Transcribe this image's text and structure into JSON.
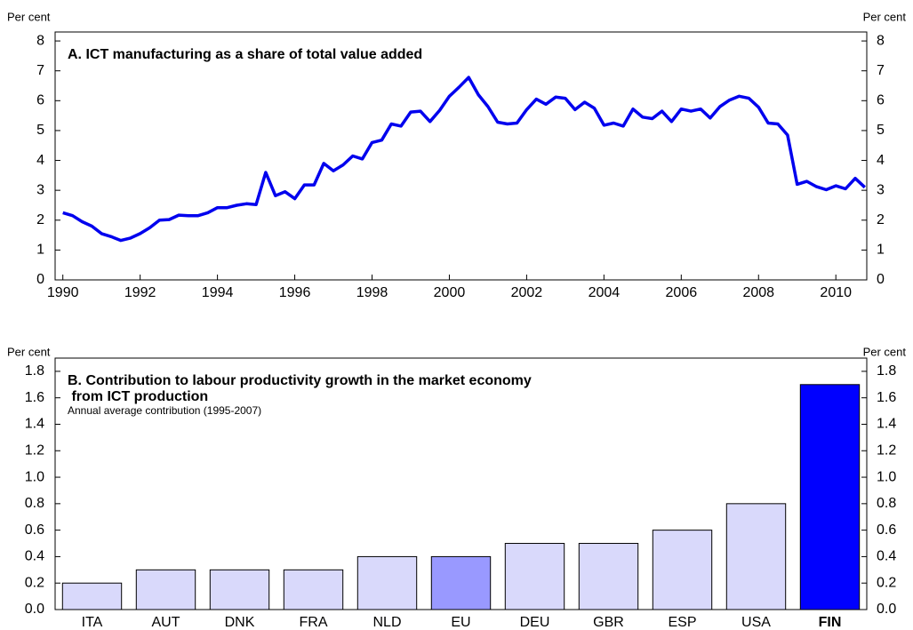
{
  "chart_data": [
    {
      "type": "line",
      "title": [
        "A. ICT manufacturing as a share of total value added"
      ],
      "y_label": "Per cent",
      "y2_label": "Per cent",
      "x": [
        1990,
        1990.25,
        1990.5,
        1990.75,
        1991,
        1991.25,
        1991.5,
        1991.75,
        1992,
        1992.25,
        1992.5,
        1992.75,
        1993,
        1993.25,
        1993.5,
        1993.75,
        1994,
        1994.25,
        1994.5,
        1994.75,
        1995,
        1995.25,
        1995.5,
        1995.75,
        1996,
        1996.25,
        1996.5,
        1996.75,
        1997,
        1997.25,
        1997.5,
        1997.75,
        1998,
        1998.25,
        1998.5,
        1998.75,
        1999,
        1999.25,
        1999.5,
        1999.75,
        2000,
        2000.25,
        2000.5,
        2000.75,
        2001,
        2001.25,
        2001.5,
        2001.75,
        2002,
        2002.25,
        2002.5,
        2002.75,
        2003,
        2003.25,
        2003.5,
        2003.75,
        2004,
        2004.25,
        2004.5,
        2004.75,
        2005,
        2005.25,
        2005.5,
        2005.75,
        2006,
        2006.25,
        2006.5,
        2006.75,
        2007,
        2007.25,
        2007.5,
        2007.75,
        2008,
        2008.25,
        2008.5,
        2008.75,
        2009,
        2009.25,
        2009.5,
        2009.75,
        2010,
        2010.25,
        2010.5,
        2010.75
      ],
      "series": [
        {
          "color": "#0000ee",
          "values": [
            2.25,
            2.15,
            1.95,
            1.8,
            1.55,
            1.45,
            1.32,
            1.4,
            1.55,
            1.75,
            2.0,
            2.02,
            2.17,
            2.15,
            2.15,
            2.25,
            2.42,
            2.42,
            2.5,
            2.55,
            2.52,
            3.6,
            2.82,
            2.95,
            2.72,
            3.18,
            3.18,
            3.9,
            3.65,
            3.85,
            4.15,
            4.05,
            4.6,
            4.68,
            5.22,
            5.15,
            5.62,
            5.65,
            5.3,
            5.68,
            6.15,
            6.45,
            6.78,
            6.2,
            5.8,
            5.28,
            5.22,
            5.25,
            5.7,
            6.05,
            5.88,
            6.12,
            6.08,
            5.7,
            5.95,
            5.75,
            5.18,
            5.25,
            5.15,
            5.72,
            5.45,
            5.4,
            5.65,
            5.3,
            5.72,
            5.65,
            5.72,
            5.42,
            5.8,
            6.02,
            6.15,
            6.08,
            5.78,
            5.25,
            5.22,
            4.85,
            3.2,
            3.3,
            3.12,
            3.02,
            3.15,
            3.05,
            3.4,
            3.1
          ]
        }
      ],
      "xlim": [
        1989.8,
        2010.8
      ],
      "xticks": [
        1990,
        1992,
        1994,
        1996,
        1998,
        2000,
        2002,
        2004,
        2006,
        2008,
        2010
      ],
      "ylim": [
        0,
        8.3
      ],
      "yticks": [
        0,
        1,
        2,
        3,
        4,
        5,
        6,
        7,
        8
      ]
    },
    {
      "type": "bar",
      "title": [
        "B. Contribution to labour productivity growth in the market economy",
        " from ICT production"
      ],
      "subtitle": "Annual average contribution (1995-2007)",
      "y_label": "Per cent",
      "y2_label": "Per cent",
      "categories": [
        "ITA",
        "AUT",
        "DNK",
        "FRA",
        "NLD",
        "EU",
        "DEU",
        "GBR",
        "ESP",
        "USA",
        "FIN"
      ],
      "values": [
        0.2,
        0.3,
        0.3,
        0.3,
        0.4,
        0.4,
        0.5,
        0.5,
        0.6,
        0.8,
        1.7
      ],
      "colors": [
        "#d9d9fb",
        "#d9d9fb",
        "#d9d9fb",
        "#d9d9fb",
        "#d9d9fb",
        "#9999ff",
        "#d9d9fb",
        "#d9d9fb",
        "#d9d9fb",
        "#d9d9fb",
        "#0000ff"
      ],
      "bold_category_index": 10,
      "ylim": [
        0,
        1.9
      ],
      "yticks": [
        {
          "value": 0,
          "label": "0.0"
        },
        0.2,
        0.4,
        0.6,
        0.8,
        {
          "value": 1,
          "label": "1.0"
        },
        1.2,
        1.4,
        1.6,
        1.8
      ]
    }
  ]
}
